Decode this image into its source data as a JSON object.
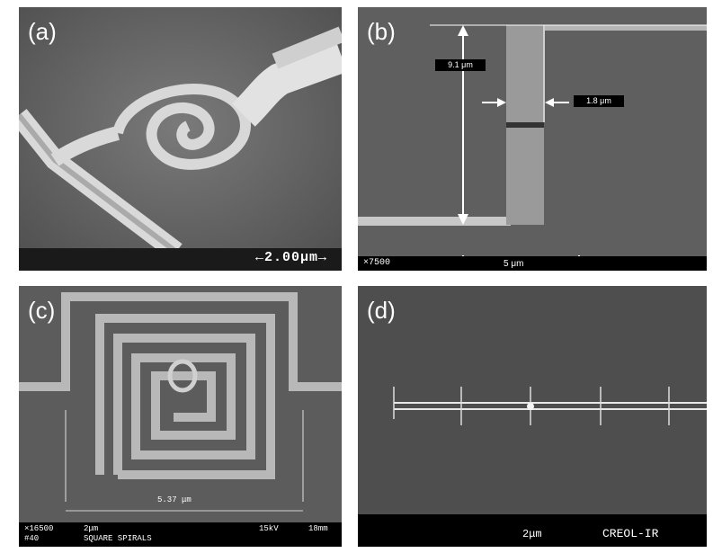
{
  "panels": [
    {
      "label": "(a)",
      "scale": "←2.00μm→"
    },
    {
      "label": "(b)",
      "measure_height": "9.1 μm",
      "measure_width": "1.8 μm",
      "magnification": "×7500",
      "scale": "5 μm"
    },
    {
      "label": "(c)",
      "measure": "5.37 μm",
      "magnification": "×16500",
      "scale": "2μm",
      "voltage": "15kV",
      "wd": "18mm",
      "frame": "#40",
      "caption": "SQUARE SPIRALS"
    },
    {
      "label": "(d)",
      "scale": "2μm",
      "caption": "CREOL-IR"
    }
  ],
  "colors": {
    "background": "#ffffff",
    "sem_gray": "#6e6e6e",
    "bar": "#000000",
    "text": "#ffffff"
  }
}
